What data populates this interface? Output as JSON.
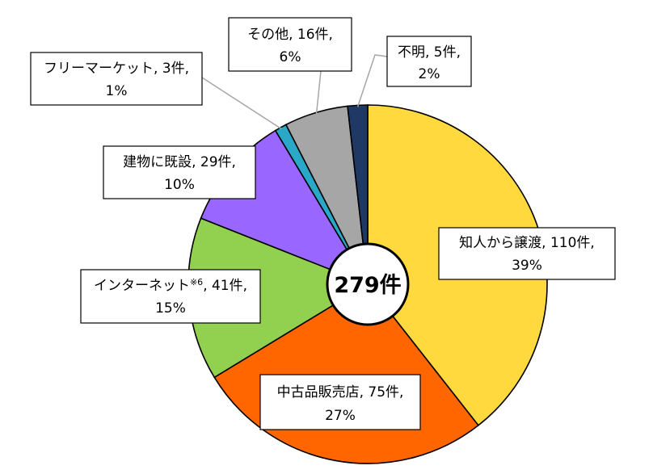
{
  "chart_data": {
    "type": "pie",
    "center_label": "279件",
    "slices": [
      {
        "line1": "知人から譲渡, 110件,",
        "line2": "39%",
        "value": 110,
        "percent": 39,
        "color": "#FFD93D",
        "label_box": "inside"
      },
      {
        "line1": "中古品販売店, 75件,",
        "line2": "27%",
        "value": 75,
        "percent": 27,
        "color": "#FF6600",
        "label_box": "inside"
      },
      {
        "line1_main": "インターネット",
        "line1_sup": "※6",
        "line1_rest": ", 41件,",
        "line2": "15%",
        "value": 41,
        "percent": 15,
        "color": "#92D050",
        "label_box": "inside"
      },
      {
        "line1": "建物に既設, 29件,",
        "line2": "10%",
        "value": 29,
        "percent": 10,
        "color": "#9966FF",
        "label_box": "inside"
      },
      {
        "line1": "フリーマーケット, 3件,",
        "line2": "1%",
        "value": 3,
        "percent": 1,
        "color": "#2AA8C8",
        "label_box": "leader"
      },
      {
        "line1": "その他, 16件,",
        "line2": "6%",
        "value": 16,
        "percent": 6,
        "color": "#A6A6A6",
        "label_box": "leader"
      },
      {
        "line1": "不明, 5件,",
        "line2": "2%",
        "value": 5,
        "percent": 2,
        "color": "#1F3864",
        "label_box": "leader"
      }
    ]
  }
}
